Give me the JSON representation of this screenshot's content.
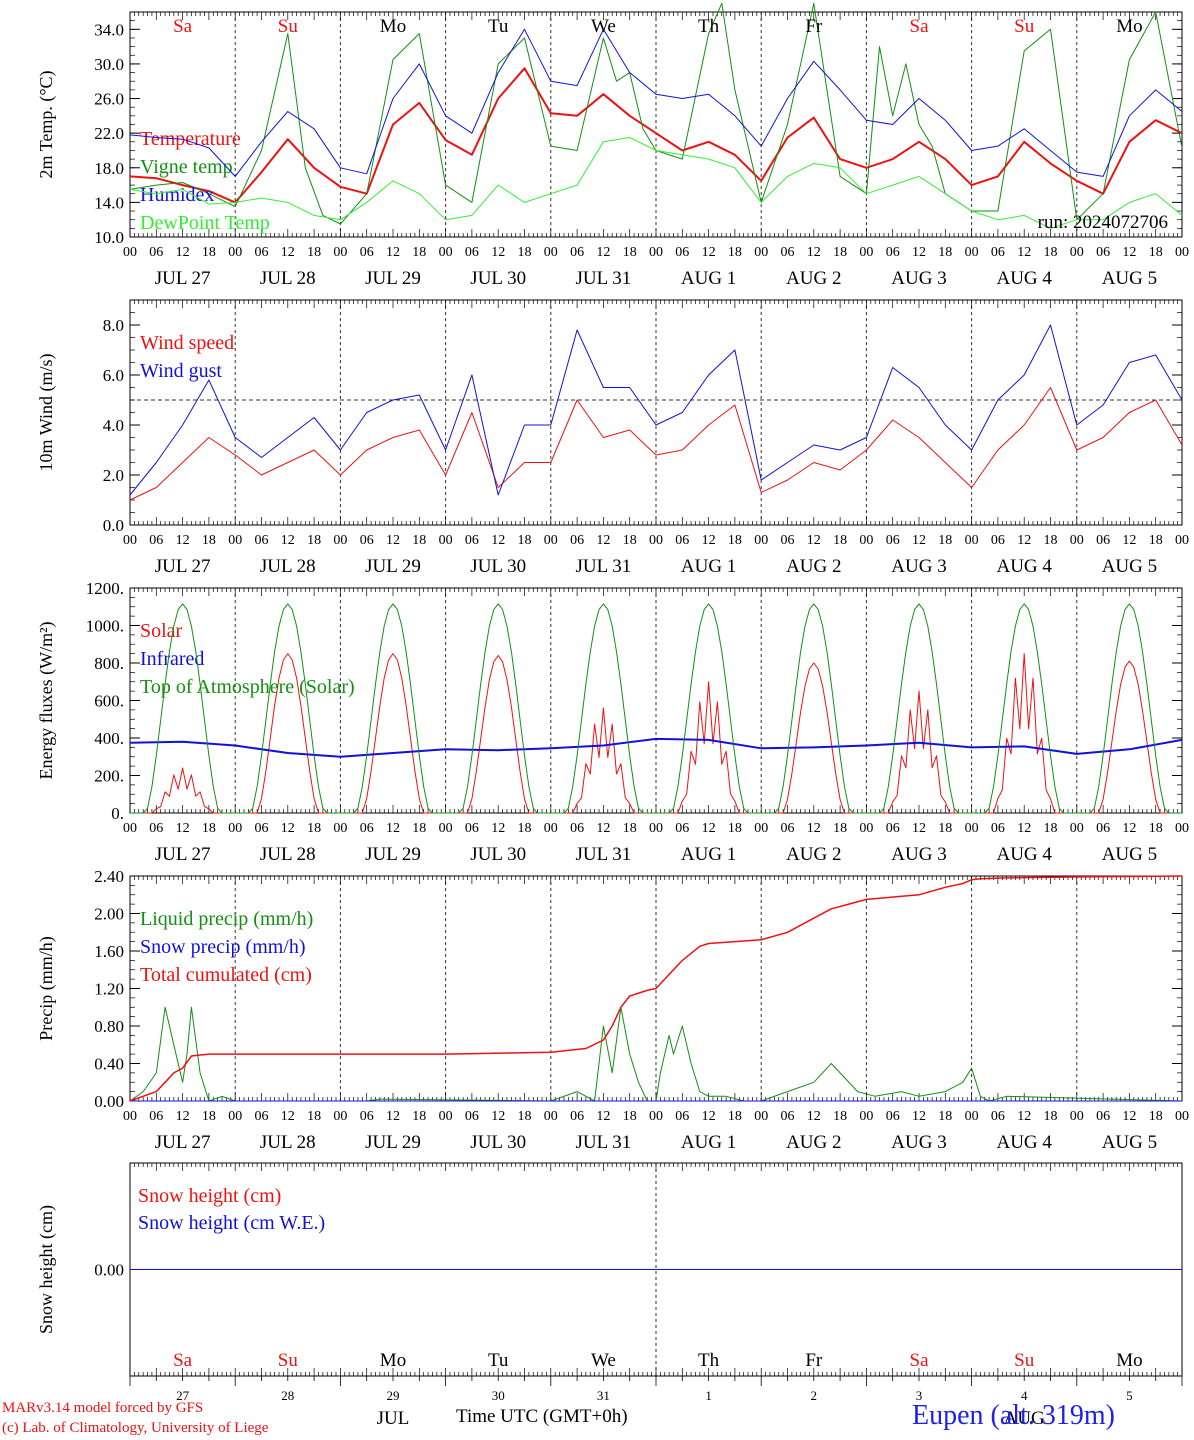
{
  "run_label": "run: 2024072706",
  "weekdays": [
    {
      "label": "Sa",
      "color": "#ee1111"
    },
    {
      "label": "Su",
      "color": "#ee1111"
    },
    {
      "label": "Mo",
      "color": "#000000"
    },
    {
      "label": "Tu",
      "color": "#000000"
    },
    {
      "label": "We",
      "color": "#000000"
    },
    {
      "label": "Th",
      "color": "#000000"
    },
    {
      "label": "Fr",
      "color": "#000000"
    },
    {
      "label": "Sa",
      "color": "#ee1111"
    },
    {
      "label": "Su",
      "color": "#ee1111"
    },
    {
      "label": "Mo",
      "color": "#000000"
    }
  ],
  "date_labels": [
    "JUL 27",
    "JUL 28",
    "JUL 29",
    "JUL 30",
    "JUL 31",
    "AUG  1",
    "AUG  2",
    "AUG  3",
    "AUG  4",
    "AUG  5"
  ],
  "hour_labels": [
    "00",
    "06",
    "12",
    "18"
  ],
  "last_hour_label": "00",
  "bottom_days": [
    "27",
    "28",
    "29",
    "30",
    "31",
    "1",
    "2",
    "3",
    "4",
    "5"
  ],
  "bottom_months": [
    {
      "label": "JUL",
      "day_index": 2
    },
    {
      "label": "AUG",
      "day_index": 8
    }
  ],
  "xaxis_title": "Time UTC (GMT+0h)",
  "footer": {
    "model": "MARv3.14 model forced by GFS",
    "credit": "(c) Lab. of Climatology, University of Liege",
    "station": "Eupen (alt. 319m)"
  },
  "chart_data": [
    {
      "type": "line",
      "ylabel": "2m Temp. (°C)",
      "ylim": [
        10,
        36
      ],
      "yticks": [
        {
          "v": 10,
          "t": "10.0"
        },
        {
          "v": 14,
          "t": "14.0"
        },
        {
          "v": 18,
          "t": "18.0"
        },
        {
          "v": 22,
          "t": "22.0"
        },
        {
          "v": 26,
          "t": "26.0"
        },
        {
          "v": 30,
          "t": "30.0"
        },
        {
          "v": 34,
          "t": "34.0"
        }
      ],
      "x_unit": "hours since JUL 27 00 UTC",
      "xlim": [
        0,
        240
      ],
      "series": [
        {
          "name": "Temperature",
          "color": "#ee1111",
          "width": 2,
          "x": [
            0,
            6,
            12,
            18,
            24,
            30,
            36,
            42,
            48,
            54,
            60,
            66,
            72,
            78,
            84,
            90,
            96,
            102,
            108,
            114,
            120,
            126,
            132,
            138,
            144,
            150,
            156,
            162,
            168,
            174,
            180,
            186,
            192,
            198,
            204,
            210,
            216,
            222,
            228,
            234,
            240
          ],
          "y": [
            17.0,
            16.8,
            16.0,
            15.3,
            14.0,
            17.5,
            21.3,
            18.0,
            15.8,
            15.0,
            23.0,
            25.5,
            21.2,
            19.5,
            26.0,
            29.5,
            24.3,
            24.0,
            26.5,
            24.0,
            22.0,
            20.0,
            21.0,
            19.5,
            16.5,
            21.5,
            23.8,
            19.0,
            18.0,
            19.0,
            21.0,
            19.0,
            16.0,
            17.0,
            21.0,
            18.5,
            16.5,
            15.0,
            21.0,
            23.5,
            22.0
          ]
        },
        {
          "name": "Vigne temp",
          "color": "#138f13",
          "width": 1,
          "x": [
            0,
            6,
            12,
            18,
            24,
            30,
            36,
            40,
            44,
            48,
            54,
            60,
            66,
            72,
            78,
            84,
            90,
            96,
            102,
            108,
            111,
            114,
            117,
            120,
            126,
            132,
            135,
            138,
            144,
            150,
            156,
            162,
            168,
            171,
            174,
            177,
            180,
            183,
            186,
            192,
            198,
            204,
            210,
            213,
            216,
            222,
            228,
            234,
            240
          ],
          "y": [
            15.5,
            16.0,
            16.3,
            15.0,
            13.5,
            20.0,
            33.5,
            18.0,
            12.5,
            11.5,
            15.0,
            30.5,
            33.5,
            16.0,
            14.0,
            30.0,
            33.0,
            20.5,
            20.0,
            33.0,
            28.0,
            29.0,
            22.5,
            20.0,
            19.0,
            33.5,
            37.0,
            27.0,
            14.0,
            23.0,
            37.0,
            17.0,
            15.0,
            32.0,
            24.0,
            30.0,
            23.0,
            20.5,
            15.0,
            13.0,
            13.0,
            31.5,
            34.0,
            23.0,
            12.0,
            15.0,
            30.5,
            36.0,
            20.3
          ]
        },
        {
          "name": "Humidex",
          "color": "#1111dd",
          "width": 1,
          "x": [
            0,
            6,
            12,
            18,
            24,
            30,
            36,
            42,
            48,
            54,
            60,
            66,
            72,
            78,
            84,
            90,
            96,
            102,
            108,
            114,
            120,
            126,
            132,
            138,
            144,
            150,
            156,
            162,
            168,
            174,
            180,
            186,
            192,
            198,
            204,
            210,
            216,
            222,
            228,
            234,
            240
          ],
          "y": [
            21.8,
            21.5,
            21.3,
            20.3,
            17.0,
            21.0,
            24.5,
            22.5,
            18.0,
            17.3,
            26.0,
            30.0,
            24.0,
            22.0,
            29.0,
            34.0,
            28.0,
            27.5,
            34.0,
            29.0,
            26.5,
            26.0,
            26.5,
            24.0,
            20.5,
            26.0,
            30.3,
            27.0,
            23.5,
            23.0,
            26.0,
            23.5,
            20.0,
            20.5,
            22.5,
            20.0,
            17.5,
            17.0,
            24.0,
            27.0,
            24.5
          ]
        },
        {
          "name": "DewPoint Temp",
          "color": "#33ee33",
          "width": 1,
          "x": [
            0,
            6,
            12,
            18,
            24,
            30,
            36,
            42,
            48,
            54,
            60,
            66,
            72,
            78,
            84,
            90,
            96,
            102,
            108,
            114,
            120,
            126,
            132,
            138,
            144,
            150,
            156,
            162,
            168,
            174,
            180,
            186,
            192,
            198,
            204,
            210,
            216,
            222,
            228,
            234,
            240
          ],
          "y": [
            15.5,
            15.0,
            15.5,
            13.8,
            14.0,
            14.5,
            14.0,
            12.5,
            12.0,
            14.0,
            16.5,
            15.0,
            12.0,
            12.5,
            16.0,
            14.0,
            15.0,
            16.0,
            21.0,
            21.5,
            20.0,
            19.5,
            19.0,
            18.0,
            14.0,
            17.0,
            18.5,
            18.0,
            15.0,
            16.0,
            17.0,
            15.0,
            13.0,
            12.0,
            12.5,
            11.0,
            12.0,
            12.0,
            14.0,
            15.0,
            12.5
          ]
        }
      ]
    },
    {
      "type": "line",
      "ylabel": "10m Wind (m/s)",
      "ylim": [
        0,
        9
      ],
      "yticks": [
        {
          "v": 0,
          "t": "0.0"
        },
        {
          "v": 2,
          "t": "2.0"
        },
        {
          "v": 4,
          "t": "4.0"
        },
        {
          "v": 6,
          "t": "6.0"
        },
        {
          "v": 8,
          "t": "8.0"
        }
      ],
      "ref_line": 5,
      "x_unit": "hours since JUL 27 00 UTC",
      "xlim": [
        0,
        240
      ],
      "series": [
        {
          "name": "Wind speed",
          "color": "#ee1111",
          "width": 1,
          "x": [
            0,
            6,
            12,
            18,
            24,
            30,
            36,
            42,
            48,
            54,
            60,
            66,
            72,
            78,
            84,
            90,
            96,
            102,
            108,
            114,
            120,
            126,
            132,
            138,
            144,
            150,
            156,
            162,
            168,
            174,
            180,
            186,
            192,
            198,
            204,
            210,
            216,
            222,
            228,
            234,
            240
          ],
          "y": [
            1.0,
            1.5,
            2.5,
            3.5,
            2.8,
            2.0,
            2.5,
            3.0,
            2.0,
            3.0,
            3.5,
            3.8,
            2.0,
            4.5,
            1.5,
            2.5,
            2.5,
            5.0,
            3.5,
            3.8,
            2.8,
            3.0,
            4.0,
            4.8,
            1.3,
            1.8,
            2.5,
            2.2,
            3.0,
            4.2,
            3.5,
            2.5,
            1.5,
            3.0,
            4.0,
            5.5,
            3.0,
            3.5,
            4.5,
            5.0,
            3.2
          ]
        },
        {
          "name": "Wind gust",
          "color": "#1111dd",
          "width": 1,
          "x": [
            0,
            6,
            12,
            18,
            24,
            30,
            36,
            42,
            48,
            54,
            60,
            66,
            72,
            78,
            84,
            90,
            96,
            102,
            108,
            114,
            120,
            126,
            132,
            138,
            144,
            150,
            156,
            162,
            168,
            174,
            180,
            186,
            192,
            198,
            204,
            210,
            216,
            222,
            228,
            234,
            240
          ],
          "y": [
            1.2,
            2.5,
            4.0,
            5.8,
            3.5,
            2.7,
            3.5,
            4.3,
            3.0,
            4.5,
            5.0,
            5.2,
            3.0,
            6.0,
            1.2,
            4.0,
            4.0,
            7.8,
            5.5,
            5.5,
            4.0,
            4.5,
            6.0,
            7.0,
            1.8,
            2.5,
            3.2,
            3.0,
            3.5,
            6.3,
            5.5,
            4.0,
            3.0,
            5.0,
            6.0,
            8.0,
            4.0,
            4.8,
            6.5,
            6.8,
            5.0
          ]
        }
      ]
    },
    {
      "type": "line",
      "ylabel": "Energy fluxes (W/m²)",
      "ylim": [
        0,
        1200
      ],
      "yticks": [
        {
          "v": 0,
          "t": "0."
        },
        {
          "v": 200,
          "t": "200."
        },
        {
          "v": 400,
          "t": "400."
        },
        {
          "v": 600,
          "t": "600."
        },
        {
          "v": 800,
          "t": "800."
        },
        {
          "v": 1000,
          "t": "1000."
        },
        {
          "v": 1200,
          "t": "1200."
        }
      ],
      "x_unit": "hours since JUL 27 00 UTC",
      "xlim": [
        0,
        240
      ],
      "series": [
        {
          "name": "Solar",
          "color": "#ee1111",
          "width": 1,
          "day_peaks": [
            240,
            850,
            850,
            840,
            560,
            700,
            800,
            650,
            850,
            810
          ]
        },
        {
          "name": "Infrared",
          "color": "#1111dd",
          "width": 2,
          "x": [
            0,
            12,
            24,
            36,
            48,
            60,
            72,
            84,
            96,
            108,
            120,
            132,
            144,
            156,
            168,
            180,
            192,
            204,
            216,
            228,
            240
          ],
          "y": [
            375,
            380,
            360,
            320,
            300,
            320,
            340,
            335,
            345,
            360,
            395,
            390,
            345,
            350,
            360,
            375,
            350,
            355,
            315,
            340,
            390
          ]
        },
        {
          "name": "Top of Atmosphere (Solar)",
          "color": "#138f13",
          "width": 1,
          "daily_peak": 1115
        }
      ]
    },
    {
      "type": "line",
      "ylabel": "Precip (mm/h)",
      "ylim": [
        0,
        2.4
      ],
      "yticks": [
        {
          "v": 0,
          "t": "0.00"
        },
        {
          "v": 0.4,
          "t": "0.40"
        },
        {
          "v": 0.8,
          "t": "0.80"
        },
        {
          "v": 1.2,
          "t": "1.20"
        },
        {
          "v": 1.6,
          "t": "1.60"
        },
        {
          "v": 2.0,
          "t": "2.00"
        },
        {
          "v": 2.4,
          "t": "2.40"
        }
      ],
      "x_unit": "hours since JUL 27 00 UTC",
      "xlim": [
        0,
        240
      ],
      "series": [
        {
          "name": "Liquid precip (mm/h)",
          "color": "#138f13",
          "width": 1,
          "x": [
            0,
            3,
            6,
            8,
            10,
            12,
            13,
            14,
            16,
            18,
            21,
            24,
            54,
            57,
            96,
            102,
            104,
            106,
            108,
            110,
            112,
            114,
            116,
            118,
            120,
            121,
            123,
            124,
            126,
            128,
            130,
            132,
            136,
            140,
            144,
            150,
            156,
            160,
            162,
            166,
            170,
            176,
            180,
            186,
            190,
            192,
            193,
            194,
            196,
            200,
            240
          ],
          "y": [
            0,
            0.1,
            0.3,
            1.0,
            0.6,
            0.2,
            0.5,
            1.0,
            0.3,
            0,
            0.05,
            0,
            0,
            0.02,
            0,
            0.1,
            0.05,
            0,
            0.8,
            0.3,
            1.0,
            0.5,
            0.2,
            0,
            0,
            0.3,
            0.7,
            0.5,
            0.8,
            0.4,
            0.1,
            0.05,
            0.05,
            0,
            0,
            0.1,
            0.2,
            0.4,
            0.3,
            0.1,
            0.05,
            0.1,
            0.05,
            0.1,
            0.2,
            0.35,
            0.2,
            0.05,
            0,
            0.05,
            0
          ]
        },
        {
          "name": "Snow precip (mm/h)",
          "color": "#1111dd",
          "width": 1,
          "x": [
            0,
            240
          ],
          "y": [
            0,
            0
          ]
        },
        {
          "name": "Total cumulated (cm)",
          "color": "#ee1111",
          "width": 1.5,
          "x": [
            0,
            6,
            8,
            10,
            12,
            14,
            18,
            24,
            48,
            72,
            96,
            100,
            104,
            108,
            110,
            112,
            114,
            118,
            120,
            124,
            126,
            130,
            132,
            138,
            144,
            150,
            156,
            160,
            164,
            168,
            180,
            186,
            190,
            192,
            194,
            200,
            216,
            240
          ],
          "y": [
            0,
            0.1,
            0.2,
            0.3,
            0.35,
            0.48,
            0.5,
            0.5,
            0.5,
            0.5,
            0.52,
            0.54,
            0.56,
            0.65,
            0.8,
            1.0,
            1.12,
            1.18,
            1.2,
            1.4,
            1.5,
            1.65,
            1.68,
            1.7,
            1.72,
            1.8,
            1.95,
            2.05,
            2.1,
            2.15,
            2.2,
            2.28,
            2.32,
            2.36,
            2.37,
            2.38,
            2.39,
            2.4
          ]
        }
      ]
    },
    {
      "type": "line",
      "ylabel": "Snow height (cm)",
      "ylim": [
        -1,
        1
      ],
      "yticks": [
        {
          "v": 0,
          "t": "0.00"
        }
      ],
      "x_unit": "hours since JUL 27 00 UTC",
      "xlim": [
        0,
        240
      ],
      "series": [
        {
          "name": "Snow height (cm)",
          "color": "#ee1111",
          "width": 1,
          "x": [
            0,
            240
          ],
          "y": [
            0,
            0
          ]
        },
        {
          "name": "Snow height (cm W.E.)",
          "color": "#1111dd",
          "width": 1,
          "x": [
            0,
            240
          ],
          "y": [
            0,
            0
          ]
        }
      ]
    }
  ]
}
